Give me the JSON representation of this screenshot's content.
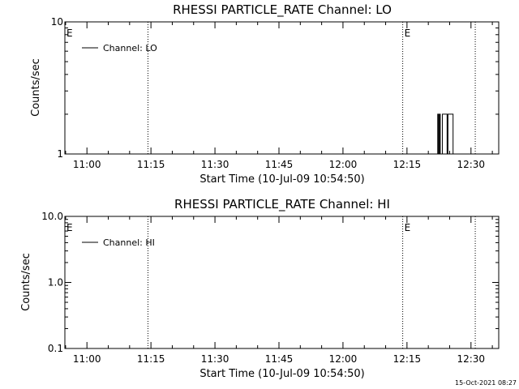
{
  "footer": {
    "timestamp": "15-Oct-2021 08:27"
  },
  "chart_data": [
    {
      "type": "line",
      "scale": "log",
      "title": "RHESSI PARTICLE_RATE Channel: LO",
      "xlabel": "Start Time (10-Jul-09 10:54:50)",
      "ylabel": "Counts/sec",
      "x_ticks": [
        {
          "label": "11:00",
          "minutes": 660
        },
        {
          "label": "11:15",
          "minutes": 675
        },
        {
          "label": "11:30",
          "minutes": 690
        },
        {
          "label": "11:45",
          "minutes": 705
        },
        {
          "label": "12:00",
          "minutes": 720
        },
        {
          "label": "12:15",
          "minutes": 735
        },
        {
          "label": "12:30",
          "minutes": 750
        }
      ],
      "y_ticks": [
        {
          "label": "1",
          "value": 1
        },
        {
          "label": "10",
          "value": 10
        }
      ],
      "xlim": [
        654.83,
        756.5
      ],
      "ylim": [
        1,
        10
      ],
      "markers": [
        {
          "minutes": 654.83,
          "label": "E"
        },
        {
          "minutes": 674.3,
          "label": ""
        },
        {
          "minutes": 734.0,
          "label": "E"
        },
        {
          "minutes": 751.0,
          "label": ""
        }
      ],
      "legend": {
        "entries": [
          "Channel: LO"
        ],
        "position": "top-left"
      },
      "series": [
        {
          "name": "Channel: LO",
          "points": [
            [
              742.0,
              1
            ],
            [
              742.2,
              2
            ],
            [
              742.4,
              1
            ],
            [
              742.6,
              2
            ],
            [
              742.8,
              1
            ],
            [
              743.3,
              2
            ],
            [
              744.2,
              2
            ],
            [
              744.4,
              1
            ],
            [
              744.6,
              2
            ],
            [
              745.6,
              2
            ],
            [
              745.8,
              1
            ]
          ]
        }
      ]
    },
    {
      "type": "line",
      "scale": "log",
      "title": "RHESSI PARTICLE_RATE Channel: HI",
      "xlabel": "Start Time (10-Jul-09 10:54:50)",
      "ylabel": "Counts/sec",
      "x_ticks": [
        {
          "label": "11:00",
          "minutes": 660
        },
        {
          "label": "11:15",
          "minutes": 675
        },
        {
          "label": "11:30",
          "minutes": 690
        },
        {
          "label": "11:45",
          "minutes": 705
        },
        {
          "label": "12:00",
          "minutes": 720
        },
        {
          "label": "12:15",
          "minutes": 735
        },
        {
          "label": "12:30",
          "minutes": 750
        }
      ],
      "y_ticks": [
        {
          "label": "0.1",
          "value": 0.1
        },
        {
          "label": "1.0",
          "value": 1
        },
        {
          "label": "10.0",
          "value": 10
        }
      ],
      "xlim": [
        654.83,
        756.5
      ],
      "ylim": [
        0.1,
        10
      ],
      "markers": [
        {
          "minutes": 654.83,
          "label": "E"
        },
        {
          "minutes": 674.3,
          "label": ""
        },
        {
          "minutes": 734.0,
          "label": "E"
        },
        {
          "minutes": 751.0,
          "label": ""
        }
      ],
      "legend": {
        "entries": [
          "Channel: HI"
        ],
        "position": "top-left"
      },
      "series": [
        {
          "name": "Channel: HI",
          "points": []
        }
      ]
    }
  ]
}
